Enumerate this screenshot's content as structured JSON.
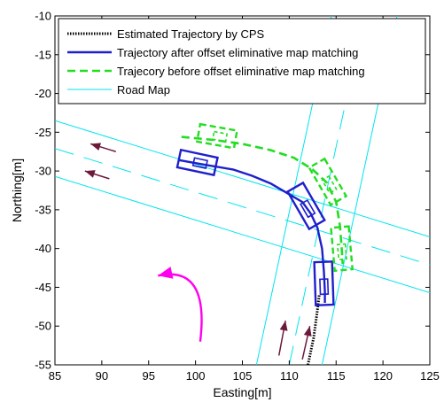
{
  "chart_data": {
    "type": "line",
    "xlabel": "Easting[m]",
    "ylabel": "Northing[m]",
    "xlim": [
      85,
      125
    ],
    "ylim": [
      -55,
      -10
    ],
    "xticks": [
      85,
      90,
      95,
      100,
      105,
      110,
      115,
      120,
      125
    ],
    "yticks": [
      -10,
      -15,
      -20,
      -25,
      -30,
      -35,
      -40,
      -45,
      -50,
      -55
    ],
    "grid": false,
    "legend_position": "top-right",
    "series": [
      {
        "name": "Estimated Trajectory by CPS",
        "color": "#000000",
        "style": "dotted",
        "points": [
          [
            112.0,
            -55.0
          ],
          [
            112.6,
            -51.5
          ],
          [
            113.0,
            -48.0
          ],
          [
            113.2,
            -46.0
          ]
        ]
      },
      {
        "name": "Trajectory after offset eliminative map matching",
        "color": "#1f1fcc",
        "style": "solid",
        "points": [
          [
            98.3,
            -28.6
          ],
          [
            101.0,
            -29.2
          ],
          [
            104.0,
            -29.8
          ],
          [
            106.0,
            -30.6
          ],
          [
            108.0,
            -31.6
          ],
          [
            110.0,
            -33.0
          ],
          [
            111.4,
            -34.0
          ],
          [
            112.3,
            -35.5
          ],
          [
            113.0,
            -37.3
          ],
          [
            113.5,
            -40.0
          ],
          [
            113.7,
            -43.0
          ],
          [
            113.8,
            -45.5
          ],
          [
            113.8,
            -47.0
          ]
        ]
      },
      {
        "name": "Trajecory before offset eliminative map matching",
        "color": "#22dd22",
        "style": "dashed",
        "points": [
          [
            98.5,
            -25.6
          ],
          [
            102.0,
            -26.0
          ],
          [
            105.0,
            -26.5
          ],
          [
            108.0,
            -27.3
          ],
          [
            110.5,
            -28.3
          ],
          [
            112.5,
            -29.8
          ],
          [
            114.0,
            -31.5
          ],
          [
            115.0,
            -34.0
          ],
          [
            115.4,
            -37.0
          ],
          [
            115.6,
            -40.0
          ],
          [
            115.7,
            -42.0
          ]
        ]
      },
      {
        "name": "Road Map",
        "color": "#00e5ee",
        "style": "solid",
        "lines": [
          [
            [
              85,
              -23.5
            ],
            [
              125,
              -38.5
            ]
          ],
          [
            [
              85,
              -27.1
            ],
            [
              125,
              -42.1
            ]
          ],
          [
            [
              85,
              -30.7
            ],
            [
              125,
              -45.7
            ]
          ],
          [
            [
              106.5,
              -55
            ],
            [
              114.5,
              -10
            ]
          ],
          [
            [
              110.0,
              -55
            ],
            [
              118.0,
              -10
            ]
          ],
          [
            [
              113.5,
              -55
            ],
            [
              121.5,
              -10
            ]
          ]
        ],
        "dashed_lines": [
          [
            [
              85,
              -27.1
            ],
            [
              125,
              -42.1
            ]
          ],
          [
            [
              110.0,
              -55
            ],
            [
              118.0,
              -10
            ]
          ]
        ]
      }
    ],
    "vehicle_boxes": [
      {
        "color": "#1f1fcc",
        "center": [
          100.2,
          -28.9
        ],
        "length": 4.0,
        "width": 1.9,
        "angle_deg": -12
      },
      {
        "color": "#1f1fcc",
        "center": [
          111.8,
          -34.5
        ],
        "length": 4.6,
        "width": 1.9,
        "angle_deg": -60
      },
      {
        "color": "#1f1fcc",
        "center": [
          113.7,
          -44.5
        ],
        "length": 4.6,
        "width": 1.9,
        "angle_deg": -88
      },
      {
        "color": "#22dd22",
        "center": [
          102.3,
          -25.5
        ],
        "length": 4.0,
        "width": 1.9,
        "angle_deg": -10
      },
      {
        "color": "#22dd22",
        "center": [
          114.1,
          -31.4
        ],
        "length": 4.6,
        "width": 1.9,
        "angle_deg": -60
      },
      {
        "color": "#22dd22",
        "center": [
          115.6,
          -40.0
        ],
        "length": 4.6,
        "width": 1.9,
        "angle_deg": -85
      }
    ],
    "annotation_arrows": [
      {
        "color": "#6b1a3a",
        "from": [
          91.5,
          -27.5
        ],
        "to": [
          88.8,
          -26.5
        ]
      },
      {
        "color": "#6b1a3a",
        "from": [
          90.8,
          -31.0
        ],
        "to": [
          88.2,
          -30.0
        ]
      },
      {
        "color": "#6b1a3a",
        "from": [
          108.9,
          -53.8
        ],
        "to": [
          109.6,
          -49.3
        ]
      },
      {
        "color": "#6b1a3a",
        "from": [
          111.4,
          -54.3
        ],
        "to": [
          112.2,
          -50.0
        ]
      },
      {
        "color": "#ff00ee",
        "from": [
          100.5,
          -52.0
        ],
        "to": [
          96.0,
          -43.5
        ],
        "curve_via": [
          101.5,
          -45.5
        ]
      }
    ]
  }
}
